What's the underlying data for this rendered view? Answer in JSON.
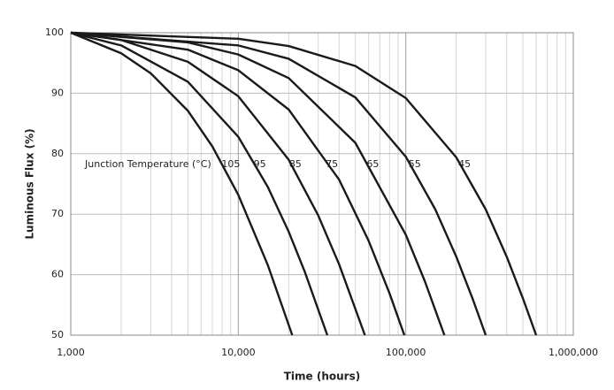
{
  "chart_data": {
    "type": "line",
    "xlabel": "Time (hours)",
    "ylabel": "Luminous Flux (%)",
    "annotation": "Junction Temperature (°C)",
    "log_x": true,
    "grid": true,
    "minor_grid": true,
    "xlim": [
      1000,
      1000000
    ],
    "xticks": [
      {
        "value": 1000,
        "label": "1,000"
      },
      {
        "value": 10000,
        "label": "10,000"
      },
      {
        "value": 100000,
        "label": "100,000"
      },
      {
        "value": 1000000,
        "label": "1,000,000"
      }
    ],
    "ylim": [
      50,
      100
    ],
    "yticks": [
      50,
      60,
      70,
      80,
      90,
      100
    ],
    "series": [
      {
        "name": "105",
        "color": "#1a1a1a",
        "x": [
          1000,
          2000,
          3000,
          5000,
          7000,
          10000,
          15000,
          21000
        ],
        "values": [
          100,
          96.6,
          93.3,
          87.1,
          81.2,
          73.2,
          61.6,
          50
        ]
      },
      {
        "name": "95",
        "color": "#1a1a1a",
        "x": [
          1000,
          2000,
          5000,
          10000,
          15000,
          20000,
          25000,
          34000
        ],
        "values": [
          100,
          97.9,
          91.9,
          82.8,
          74.5,
          67.1,
          60.4,
          50
        ]
      },
      {
        "name": "85",
        "color": "#1a1a1a",
        "x": [
          1000,
          2000,
          5000,
          10000,
          20000,
          30000,
          40000,
          57000
        ],
        "values": [
          100,
          98.8,
          95.2,
          89.5,
          79.0,
          69.8,
          61.7,
          50
        ]
      },
      {
        "name": "75",
        "color": "#1a1a1a",
        "x": [
          1000,
          5000,
          10000,
          20000,
          40000,
          60000,
          80000,
          98000
        ],
        "values": [
          100,
          97.2,
          93.8,
          87.3,
          75.7,
          65.6,
          56.9,
          50
        ]
      },
      {
        "name": "65",
        "color": "#1a1a1a",
        "x": [
          1000,
          5000,
          10000,
          20000,
          50000,
          100000,
          130000,
          170000
        ],
        "values": [
          100,
          98.4,
          96.4,
          92.5,
          81.8,
          66.6,
          58.9,
          50
        ]
      },
      {
        "name": "55",
        "color": "#1a1a1a",
        "x": [
          1000,
          10000,
          20000,
          50000,
          100000,
          150000,
          200000,
          250000,
          300000
        ],
        "values": [
          100,
          97.9,
          95.7,
          89.3,
          79.5,
          70.8,
          63.0,
          56.1,
          50
        ]
      },
      {
        "name": "45",
        "color": "#1a1a1a",
        "x": [
          1000,
          10000,
          20000,
          50000,
          100000,
          200000,
          300000,
          400000,
          500000,
          600000
        ],
        "values": [
          100,
          99.0,
          97.8,
          94.5,
          89.2,
          79.4,
          70.8,
          63.0,
          56.1,
          50
        ]
      }
    ]
  }
}
